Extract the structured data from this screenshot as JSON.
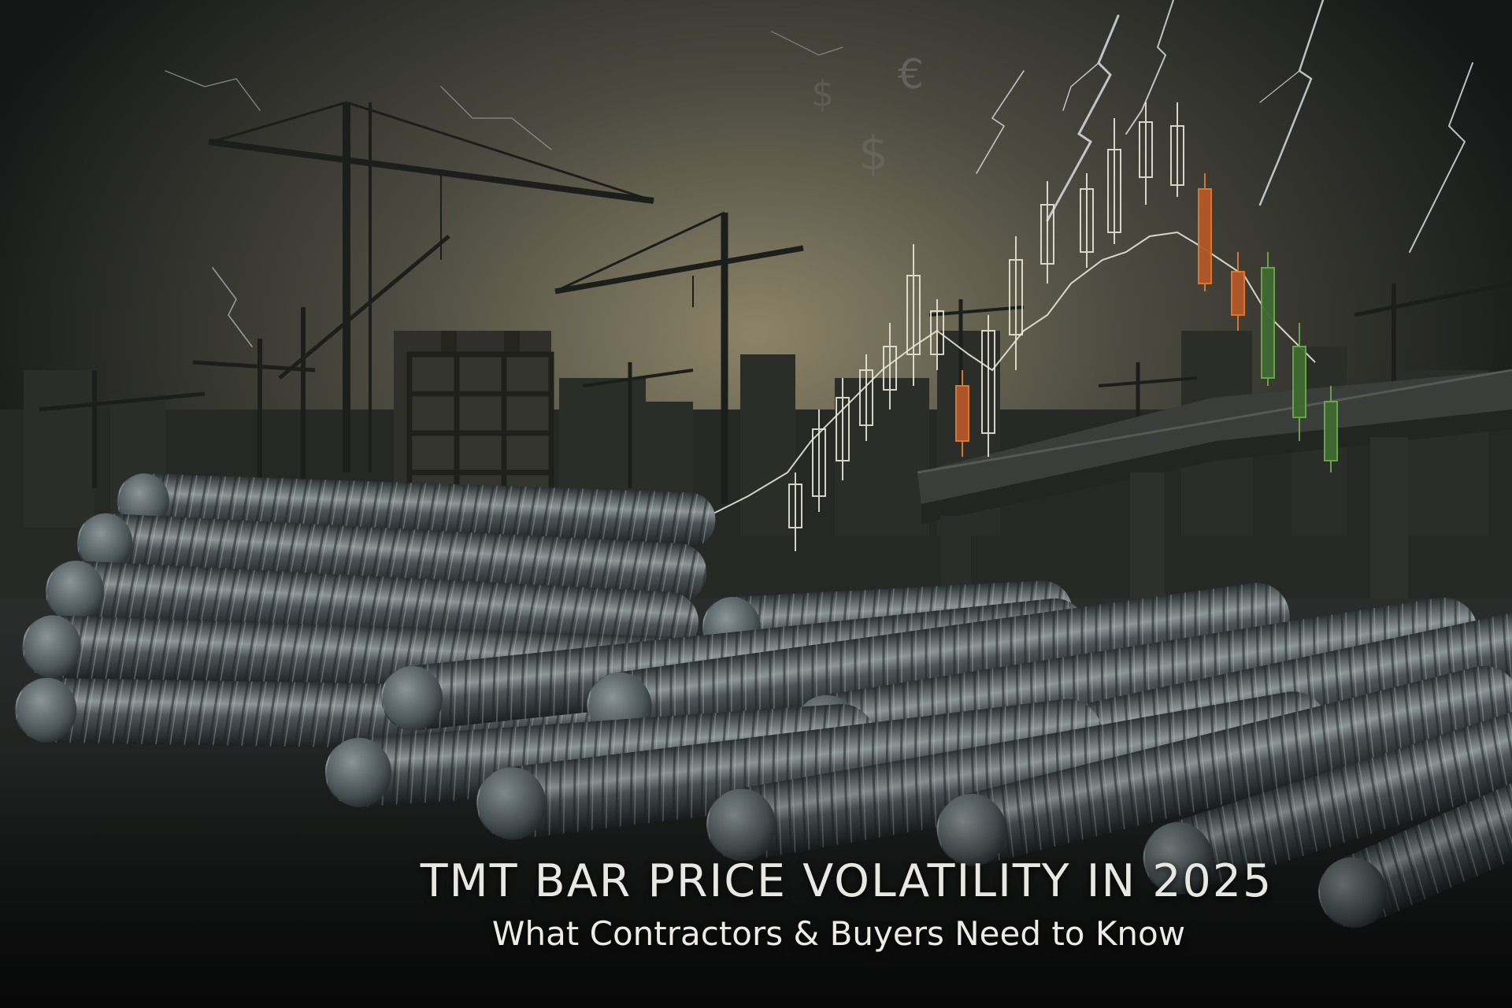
{
  "hero": {
    "title": "TMT BAR PRICE VOLATILITY IN 2025",
    "subtitle": "What Contractors & Buyers Need to Know"
  },
  "background_symbols": {
    "euro": "€",
    "dollar_a": "$",
    "dollar_b": "$"
  },
  "palette": {
    "sky_dark": "#141716",
    "sky_glow": "#8c8468",
    "steel": "#5e686b",
    "steel_highlight": "#a9b2b3",
    "candle_light": "#e7e6d6",
    "candle_orange": "#e07a32",
    "candle_green": "#6aa84f",
    "title_text": "#e9e7e1"
  },
  "icons": [
    "crane-icon",
    "candlestick-chart-icon",
    "lightning-icon",
    "rebar-bundle-icon",
    "bridge-icon"
  ]
}
